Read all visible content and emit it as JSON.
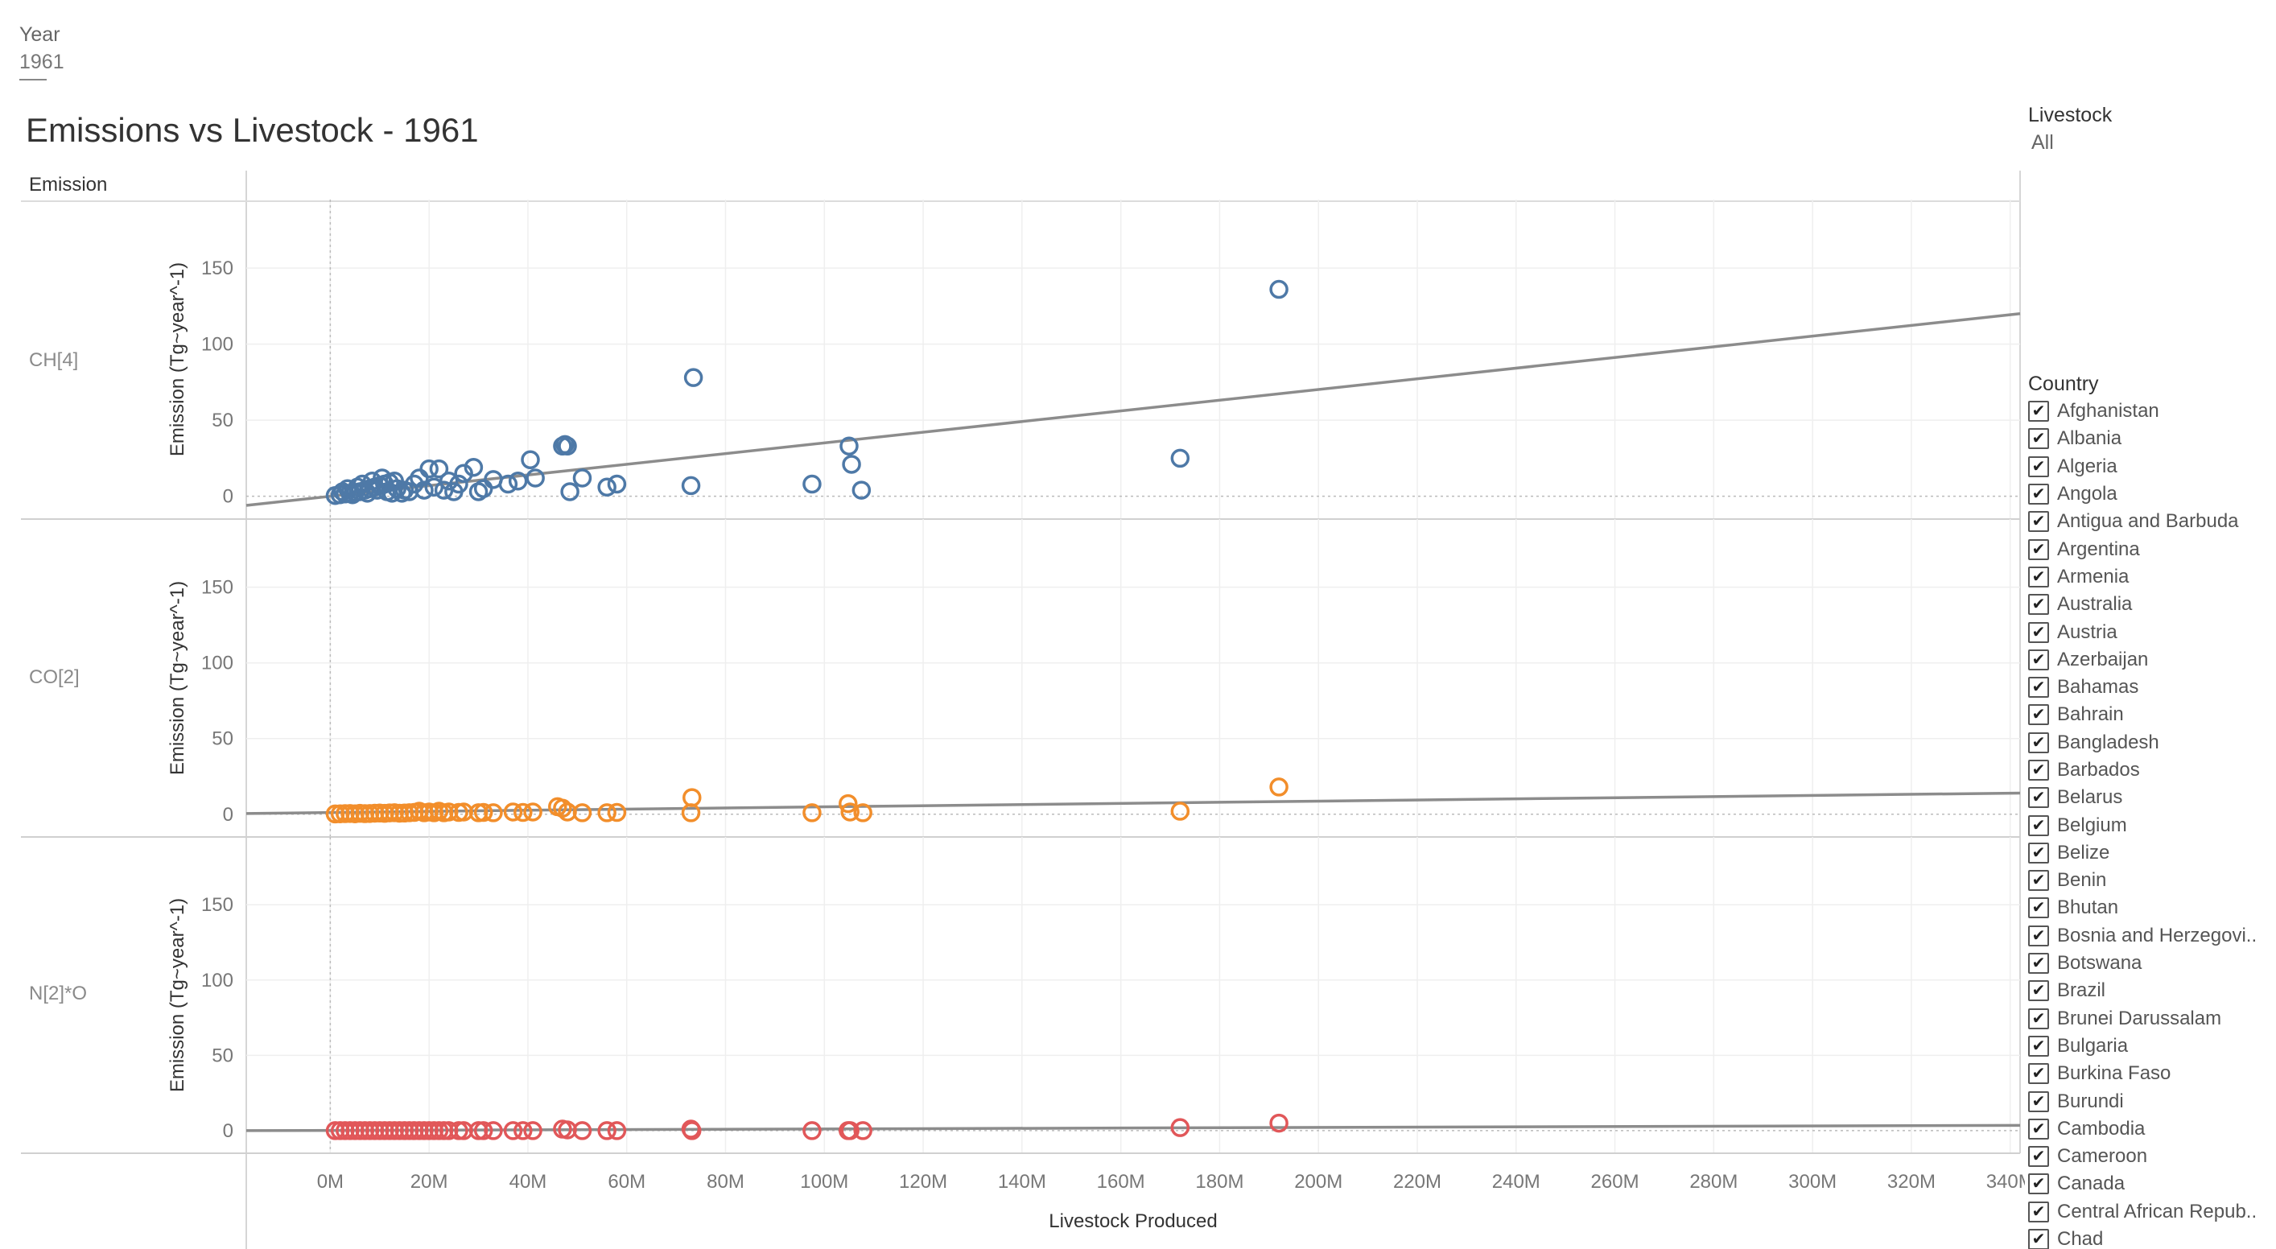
{
  "year_filter": {
    "label": "Year",
    "value": "1961"
  },
  "title": "Emissions vs Livestock - 1961",
  "row_header": "Emission",
  "livestock_filter": {
    "label": "Livestock",
    "value": "All"
  },
  "country_filter": {
    "label": "Country",
    "items": [
      "Afghanistan",
      "Albania",
      "Algeria",
      "Angola",
      "Antigua and Barbuda",
      "Argentina",
      "Armenia",
      "Australia",
      "Austria",
      "Azerbaijan",
      "Bahamas",
      "Bahrain",
      "Bangladesh",
      "Barbados",
      "Belarus",
      "Belgium",
      "Belize",
      "Benin",
      "Bhutan",
      "Bosnia and Herzegovi..",
      "Botswana",
      "Brazil",
      "Brunei Darussalam",
      "Bulgaria",
      "Burkina Faso",
      "Burundi",
      "Cambodia",
      "Cameroon",
      "Canada",
      "Central African Repub..",
      "Chad"
    ]
  },
  "chart_data": {
    "type": "scatter",
    "xlabel": "Livestock Produced",
    "ylabel": "Emission (Tg~year^-1)",
    "xlim": [
      -17000000,
      342000000
    ],
    "ylim": [
      -15,
      195
    ],
    "x_ticks": [
      0,
      20000000,
      40000000,
      60000000,
      80000000,
      100000000,
      120000000,
      140000000,
      160000000,
      180000000,
      200000000,
      220000000,
      240000000,
      260000000,
      280000000,
      300000000,
      320000000,
      340000000
    ],
    "x_tick_labels": [
      "0M",
      "20M",
      "40M",
      "60M",
      "80M",
      "100M",
      "120M",
      "140M",
      "160M",
      "180M",
      "200M",
      "220M",
      "240M",
      "260M",
      "280M",
      "300M",
      "320M",
      "340M"
    ],
    "y_ticks": [
      0,
      50,
      100,
      150
    ],
    "y_tick_labels": [
      "0",
      "50",
      "100",
      "150"
    ],
    "grid": true,
    "series": [
      {
        "name": "CH[4]",
        "color": "#4e79a7",
        "trend": [
          [
            -17000000,
            -6
          ],
          [
            342000000,
            120
          ]
        ],
        "points": [
          [
            1000000,
            0.5
          ],
          [
            2000000,
            1
          ],
          [
            3000000,
            1.5
          ],
          [
            4000000,
            2
          ],
          [
            5000000,
            2.5
          ],
          [
            6000000,
            3
          ],
          [
            7000000,
            4
          ],
          [
            8000000,
            5
          ],
          [
            9000000,
            6
          ],
          [
            10000000,
            7
          ],
          [
            11000000,
            8
          ],
          [
            12000000,
            9
          ],
          [
            13000000,
            10
          ],
          [
            2500000,
            3
          ],
          [
            3500000,
            5
          ],
          [
            4500000,
            1
          ],
          [
            5500000,
            6
          ],
          [
            6500000,
            8
          ],
          [
            7500000,
            2
          ],
          [
            8500000,
            10
          ],
          [
            9500000,
            4
          ],
          [
            10500000,
            12
          ],
          [
            11500000,
            3
          ],
          [
            12500000,
            2
          ],
          [
            13500000,
            5
          ],
          [
            14500000,
            2
          ],
          [
            15000000,
            4
          ],
          [
            16000000,
            3
          ],
          [
            17000000,
            8
          ],
          [
            18000000,
            12
          ],
          [
            19000000,
            4
          ],
          [
            20000000,
            18
          ],
          [
            21000000,
            6
          ],
          [
            22000000,
            18
          ],
          [
            23000000,
            4
          ],
          [
            24000000,
            10
          ],
          [
            25000000,
            3
          ],
          [
            26000000,
            8
          ],
          [
            27000000,
            15
          ],
          [
            29000000,
            19
          ],
          [
            30000000,
            3
          ],
          [
            31000000,
            5
          ],
          [
            33000000,
            11
          ],
          [
            36000000,
            8
          ],
          [
            38000000,
            10
          ],
          [
            40500000,
            24
          ],
          [
            41500000,
            12
          ],
          [
            47000000,
            33
          ],
          [
            47500000,
            34
          ],
          [
            48000000,
            33
          ],
          [
            48500000,
            3
          ],
          [
            51000000,
            12
          ],
          [
            56000000,
            6
          ],
          [
            58000000,
            8
          ],
          [
            73000000,
            7
          ],
          [
            73500000,
            78
          ],
          [
            97500000,
            8
          ],
          [
            105000000,
            33
          ],
          [
            105500000,
            21
          ],
          [
            107500000,
            4
          ],
          [
            172000000,
            25
          ],
          [
            192000000,
            136
          ]
        ]
      },
      {
        "name": "CO[2]",
        "color": "#f28e2b",
        "trend": [
          [
            -17000000,
            0.5
          ],
          [
            342000000,
            14
          ]
        ],
        "points": [
          [
            1000000,
            0.2
          ],
          [
            2000000,
            0.3
          ],
          [
            3000000,
            0.4
          ],
          [
            4000000,
            0.5
          ],
          [
            5000000,
            0.3
          ],
          [
            6000000,
            0.6
          ],
          [
            7000000,
            0.4
          ],
          [
            8000000,
            0.5
          ],
          [
            9000000,
            0.7
          ],
          [
            10000000,
            0.8
          ],
          [
            11000000,
            0.6
          ],
          [
            12000000,
            0.9
          ],
          [
            13000000,
            1
          ],
          [
            14000000,
            0.7
          ],
          [
            15000000,
            0.8
          ],
          [
            16000000,
            1
          ],
          [
            17000000,
            1.2
          ],
          [
            18000000,
            2
          ],
          [
            19000000,
            1
          ],
          [
            20000000,
            1.5
          ],
          [
            21000000,
            1
          ],
          [
            22000000,
            2
          ],
          [
            23000000,
            1
          ],
          [
            24000000,
            1.5
          ],
          [
            26000000,
            1.2
          ],
          [
            27000000,
            1.5
          ],
          [
            30000000,
            1
          ],
          [
            31000000,
            1.2
          ],
          [
            33000000,
            1
          ],
          [
            37000000,
            1.5
          ],
          [
            39000000,
            1.2
          ],
          [
            41000000,
            1.5
          ],
          [
            46000000,
            5
          ],
          [
            47000000,
            4
          ],
          [
            48000000,
            1.5
          ],
          [
            51000000,
            1
          ],
          [
            56000000,
            1
          ],
          [
            58000000,
            1.2
          ],
          [
            73000000,
            1
          ],
          [
            73200000,
            11
          ],
          [
            97500000,
            1
          ],
          [
            104800000,
            7
          ],
          [
            105200000,
            1.5
          ],
          [
            107800000,
            1
          ],
          [
            172000000,
            2
          ],
          [
            192000000,
            18
          ]
        ]
      },
      {
        "name": "N[2]*O",
        "color": "#e15759",
        "trend": [
          [
            -17000000,
            0
          ],
          [
            342000000,
            3.5
          ]
        ],
        "points": [
          [
            1000000,
            0
          ],
          [
            2000000,
            0
          ],
          [
            3000000,
            0
          ],
          [
            4000000,
            0
          ],
          [
            5000000,
            0
          ],
          [
            6000000,
            0
          ],
          [
            7000000,
            0
          ],
          [
            8000000,
            0
          ],
          [
            9000000,
            0
          ],
          [
            10000000,
            0
          ],
          [
            11000000,
            0
          ],
          [
            12000000,
            0
          ],
          [
            13000000,
            0
          ],
          [
            14000000,
            0
          ],
          [
            15000000,
            0
          ],
          [
            16000000,
            0
          ],
          [
            17000000,
            0
          ],
          [
            18000000,
            0
          ],
          [
            19000000,
            0
          ],
          [
            20000000,
            0
          ],
          [
            21000000,
            0
          ],
          [
            22000000,
            0
          ],
          [
            23000000,
            0
          ],
          [
            24000000,
            0
          ],
          [
            26000000,
            0
          ],
          [
            27000000,
            0
          ],
          [
            30000000,
            0
          ],
          [
            31000000,
            0
          ],
          [
            33000000,
            0
          ],
          [
            37000000,
            0
          ],
          [
            39000000,
            0
          ],
          [
            41000000,
            0
          ],
          [
            47000000,
            1
          ],
          [
            48000000,
            0.5
          ],
          [
            51000000,
            0
          ],
          [
            56000000,
            0
          ],
          [
            58000000,
            0
          ],
          [
            73000000,
            1
          ],
          [
            73200000,
            0
          ],
          [
            97500000,
            0
          ],
          [
            104800000,
            0
          ],
          [
            105200000,
            0
          ],
          [
            107800000,
            0
          ],
          [
            172000000,
            2
          ],
          [
            192000000,
            5
          ]
        ]
      }
    ]
  }
}
